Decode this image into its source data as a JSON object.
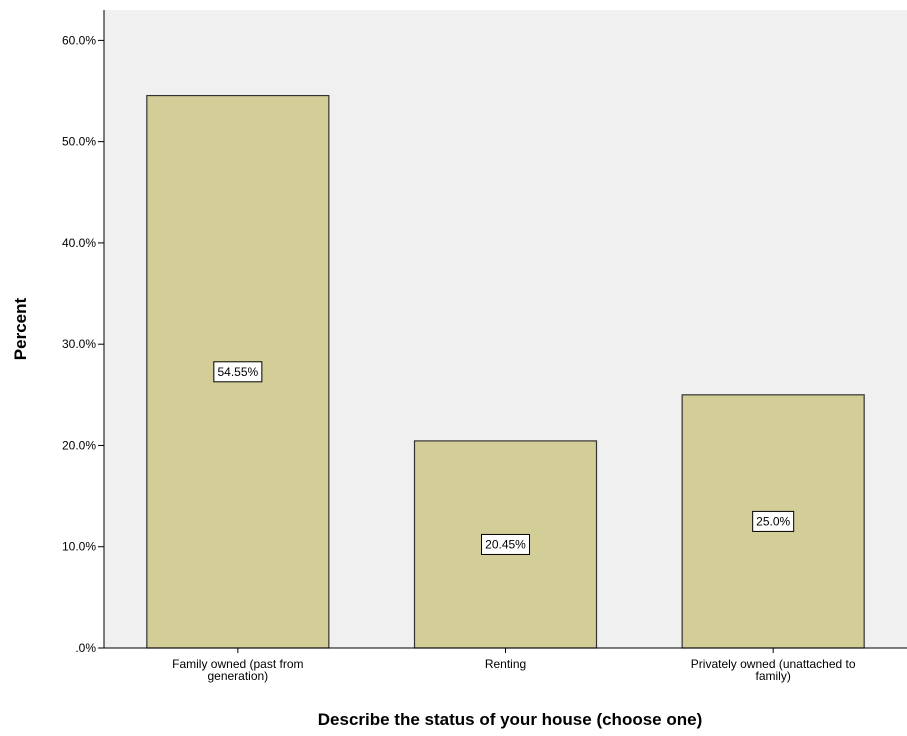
{
  "chart_data": {
    "type": "bar",
    "title": "",
    "xlabel": "Describe the status of your house (choose one)",
    "ylabel": "Percent",
    "categories": [
      [
        "Family owned (past from",
        "generation)"
      ],
      [
        "Renting"
      ],
      [
        "Privately owned (unattached to",
        "family)"
      ]
    ],
    "values": [
      54.55,
      20.45,
      25.0
    ],
    "data_labels": [
      "54.55%",
      "20.45%",
      "25.0%"
    ],
    "ylim": [
      0,
      63
    ],
    "yticks": [
      0,
      10,
      20,
      30,
      40,
      50,
      60
    ],
    "ytick_labels": [
      ".0%",
      "10.0%",
      "20.0%",
      "30.0%",
      "40.0%",
      "50.0%",
      "60.0%"
    ],
    "grid": false,
    "legend": "none",
    "colors": {
      "plot_background": "#f0f0f0",
      "bar_fill": "#d3ce97",
      "bar_stroke": "#333333",
      "axis": "#000000"
    }
  }
}
